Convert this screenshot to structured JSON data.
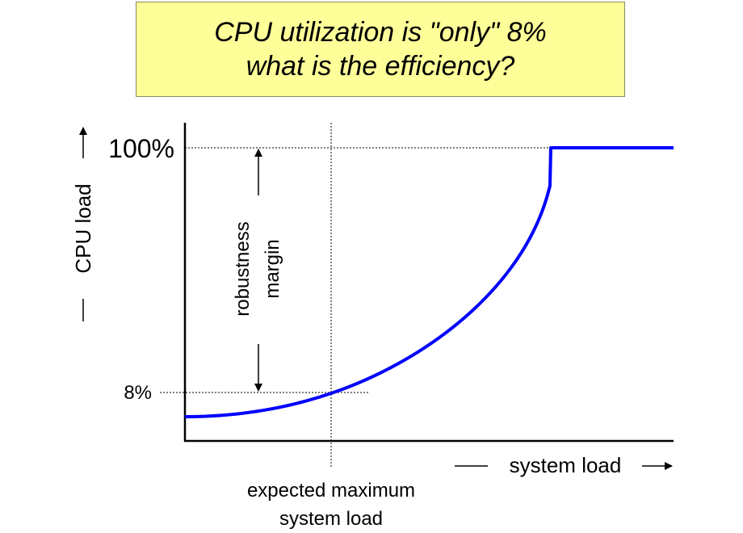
{
  "title": {
    "line1": "CPU utilization is \"only\" 8%",
    "line2": "what is the efficiency?"
  },
  "axes": {
    "y_label": "CPU load",
    "x_label": "system load",
    "y_ticks": [
      "100%",
      "8%"
    ]
  },
  "annotations": {
    "margin_line1": "robustness",
    "margin_line2": "margin",
    "expected_line1": "expected maximum",
    "expected_line2": "system load"
  },
  "colors": {
    "title_background": "#ffff99",
    "curve": "#0000ff"
  },
  "chart_data": {
    "type": "line",
    "ylabel": "CPU load",
    "xlabel": "system load",
    "y_ticks": [
      "100%",
      "8%"
    ],
    "series": [
      {
        "description_points": [
          {
            "x": 0.0,
            "y": 0.0
          },
          {
            "x": 0.3,
            "y": 8
          },
          {
            "x": 0.75,
            "y": 100
          },
          {
            "x": 1.0,
            "y": 100
          }
        ]
      }
    ]
  }
}
